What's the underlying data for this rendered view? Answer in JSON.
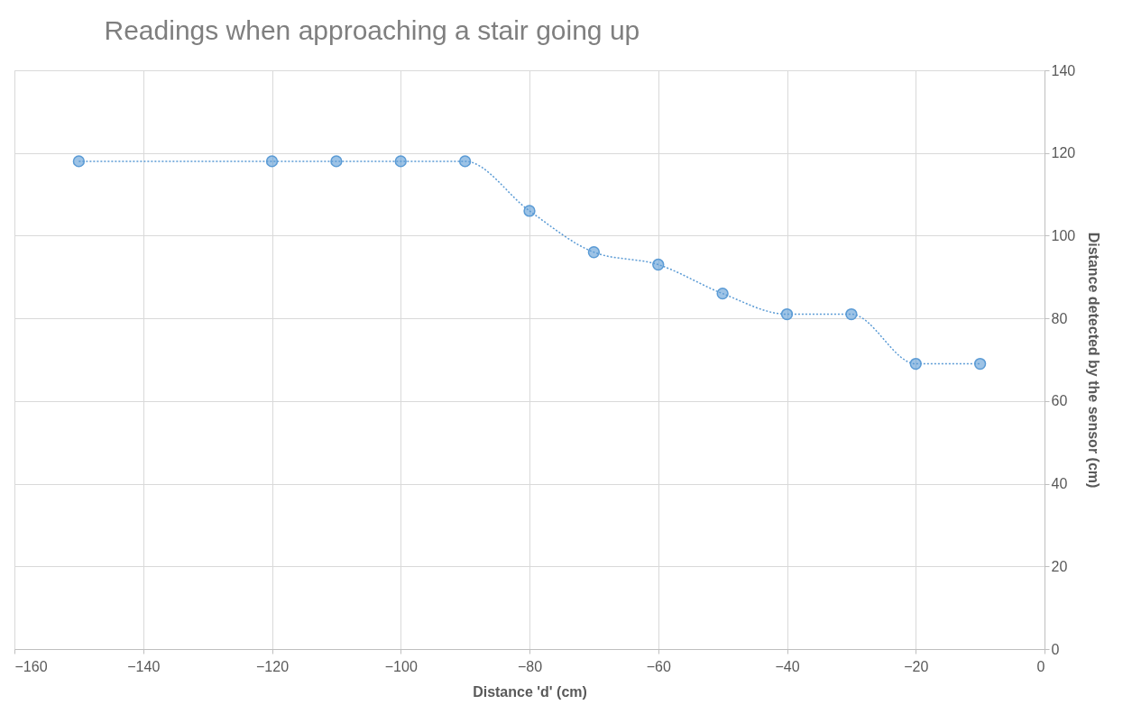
{
  "chart_data": {
    "type": "line",
    "title": "Readings when approaching a stair going up",
    "xlabel": "Distance 'd' (cm)",
    "ylabel": "Distance detected by the sensor (cm)",
    "x": [
      -150,
      -120,
      -110,
      -100,
      -90,
      -80,
      -70,
      -60,
      -50,
      -40,
      -30,
      -20,
      -10
    ],
    "series": [
      {
        "color": "#5b9bd5",
        "values": [
          118,
          118,
          118,
          118,
          118,
          106,
          96,
          93,
          86,
          81,
          81,
          69,
          69
        ]
      }
    ],
    "xlim": [
      -160,
      0
    ],
    "xticks": [
      -160,
      -140,
      -120,
      -100,
      -80,
      -60,
      -40,
      -20,
      0
    ],
    "ylim": [
      0,
      140
    ],
    "yticks": [
      0,
      20,
      40,
      60,
      80,
      100,
      120,
      140
    ],
    "grid": true,
    "marker": "circle",
    "line_style": "dotted"
  }
}
